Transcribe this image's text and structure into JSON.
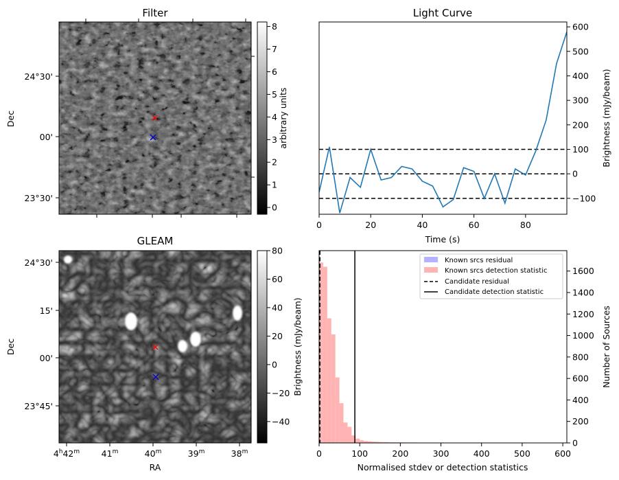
{
  "panels": {
    "filter": {
      "title": "Filter",
      "ylabel": "Dec",
      "yticks": [
        "24°30'",
        "00'",
        "23°30'"
      ],
      "colorbar": {
        "label": "arbitrary units",
        "ticks": [
          "8",
          "7",
          "6",
          "5",
          "4",
          "3",
          "2",
          "1",
          "0"
        ],
        "range": [
          -0.3,
          8.2
        ]
      }
    },
    "gleam": {
      "title": "GLEAM",
      "ylabel": "Dec",
      "xlabel": "RA",
      "yticks": [
        "24°30'",
        "15'",
        "00'",
        "23°45'"
      ],
      "xticks_main": [
        "4",
        "41",
        "40",
        "39",
        "38"
      ],
      "xticks_sup": [
        "h",
        "m",
        "m",
        "m",
        "m"
      ],
      "xtick_first_sup2": "42",
      "xtick_first_sup2_unit": "m",
      "colorbar": {
        "label": "Brightness (mJy/beam)",
        "ticks": [
          "80",
          "60",
          "40",
          "20",
          "0",
          "−20",
          "−40"
        ],
        "range": [
          -55,
          80
        ]
      }
    },
    "lightcurve": {
      "title": "Light Curve",
      "xlabel": "Time (s)",
      "ylabel": "Brightness (mJy/beam)",
      "xticks": [
        "0",
        "20",
        "40",
        "60",
        "80"
      ],
      "yticks": [
        "600",
        "500",
        "400",
        "300",
        "200",
        "100",
        "0",
        "−100"
      ]
    },
    "histogram": {
      "xlabel": "Normalised stdev or detection statistics",
      "ylabel": "Number of Sources",
      "xticks": [
        "0",
        "100",
        "200",
        "300",
        "400",
        "500",
        "600"
      ],
      "yticks": [
        "1600",
        "1400",
        "1200",
        "1000",
        "800",
        "600",
        "400",
        "200",
        "0"
      ],
      "legend": [
        {
          "label": "Known srcs residual",
          "color": "#b3b3ff"
        },
        {
          "label": "Known srcs detection statistic",
          "color": "#ffb3b3"
        },
        {
          "label": "Candidate residual",
          "style": "dashed"
        },
        {
          "label": "Candidate detection statistic",
          "style": "solid"
        }
      ]
    }
  },
  "colors": {
    "line": "#1f77b4",
    "hist_red": "#ffb3b3",
    "hist_blue": "#b3b3ff",
    "marker_red": "#ff0000",
    "marker_blue": "#0000cc"
  },
  "chart_data": [
    {
      "type": "line",
      "title": "Light Curve",
      "xlabel": "Time (s)",
      "ylabel": "Brightness (mJy/beam)",
      "xlim": [
        0,
        96
      ],
      "ylim": [
        -165,
        620
      ],
      "x": [
        0,
        4,
        8,
        12,
        16,
        20,
        24,
        28,
        32,
        36,
        40,
        44,
        48,
        52,
        56,
        60,
        64,
        68,
        72,
        76,
        80,
        84,
        88,
        92,
        96
      ],
      "y": [
        -75,
        110,
        -160,
        -15,
        -55,
        100,
        -25,
        -15,
        30,
        20,
        -30,
        -50,
        -135,
        -105,
        25,
        10,
        -100,
        0,
        -120,
        20,
        -5,
        95,
        220,
        450,
        580
      ],
      "hlines": [
        {
          "y": 100,
          "style": "dashed"
        },
        {
          "y": 0,
          "style": "dashed"
        },
        {
          "y": -100,
          "style": "dashed"
        }
      ]
    },
    {
      "type": "bar",
      "xlabel": "Normalised stdev or detection statistics",
      "ylabel": "Number of Sources",
      "xlim": [
        0,
        610
      ],
      "ylim": [
        0,
        1790
      ],
      "bin_width": 10,
      "series": [
        {
          "name": "Known srcs detection statistic",
          "values": [
            1680,
            1640,
            1160,
            1010,
            610,
            370,
            190,
            150,
            70,
            40,
            25,
            18,
            15,
            12,
            10,
            8,
            8,
            6,
            6,
            5,
            5,
            4,
            4,
            4,
            3,
            3,
            3,
            3,
            3,
            3,
            2,
            2,
            2,
            2,
            2,
            2,
            2,
            2,
            2,
            2,
            2,
            2,
            1,
            1,
            1,
            1,
            1,
            1,
            1,
            1,
            1,
            1,
            1,
            1,
            1,
            1,
            1,
            1,
            1,
            1
          ]
        }
      ],
      "vlines": [
        {
          "name": "Candidate residual",
          "x": 2,
          "style": "dashed"
        },
        {
          "name": "Candidate detection statistic",
          "x": 88,
          "style": "solid"
        }
      ]
    }
  ]
}
